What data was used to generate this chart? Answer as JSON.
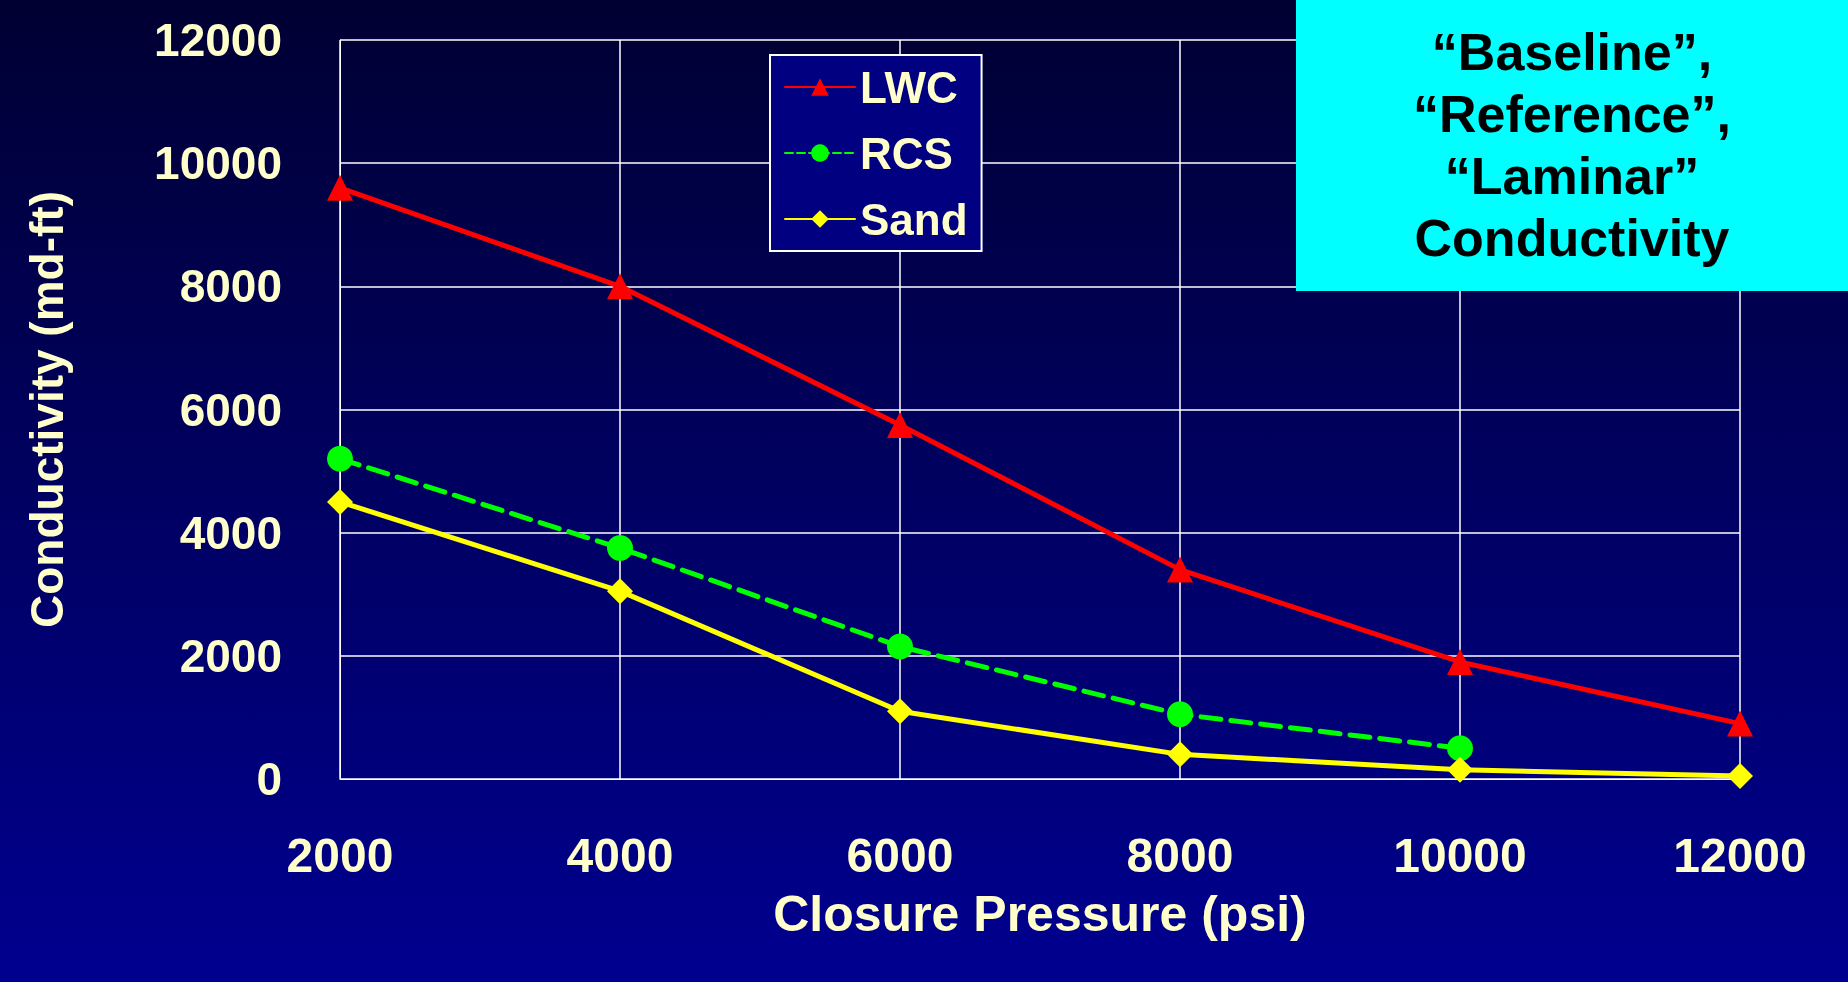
{
  "chart_data": {
    "type": "line",
    "xlabel": "Closure Pressure (psi)",
    "ylabel": "Conductivity (md-ft)",
    "x": [
      2000,
      4000,
      6000,
      8000,
      10000,
      12000
    ],
    "xlim": [
      2000,
      12000
    ],
    "xticks": [
      2000,
      4000,
      6000,
      8000,
      10000,
      12000
    ],
    "ylim": [
      0,
      12000
    ],
    "yticks": [
      0,
      2000,
      4000,
      6000,
      8000,
      10000,
      12000
    ],
    "grid": true,
    "legend": "top",
    "annotations": [
      "“Baseline”, “Reference”, “Laminar” Conductivity"
    ],
    "series": [
      {
        "name": "LWC",
        "color": "#ff0000",
        "marker": "triangle",
        "line_style": "solid",
        "values": [
          9600,
          8000,
          5750,
          3400,
          1900,
          900
        ]
      },
      {
        "name": "RCS",
        "color": "#00ff00",
        "marker": "circle",
        "line_style": "dashed",
        "values": [
          5200,
          3750,
          2150,
          1050,
          500,
          null
        ]
      },
      {
        "name": "Sand",
        "color": "#ffff00",
        "marker": "diamond",
        "line_style": "solid",
        "values": [
          4500,
          3050,
          1100,
          400,
          150,
          50
        ]
      }
    ]
  }
}
